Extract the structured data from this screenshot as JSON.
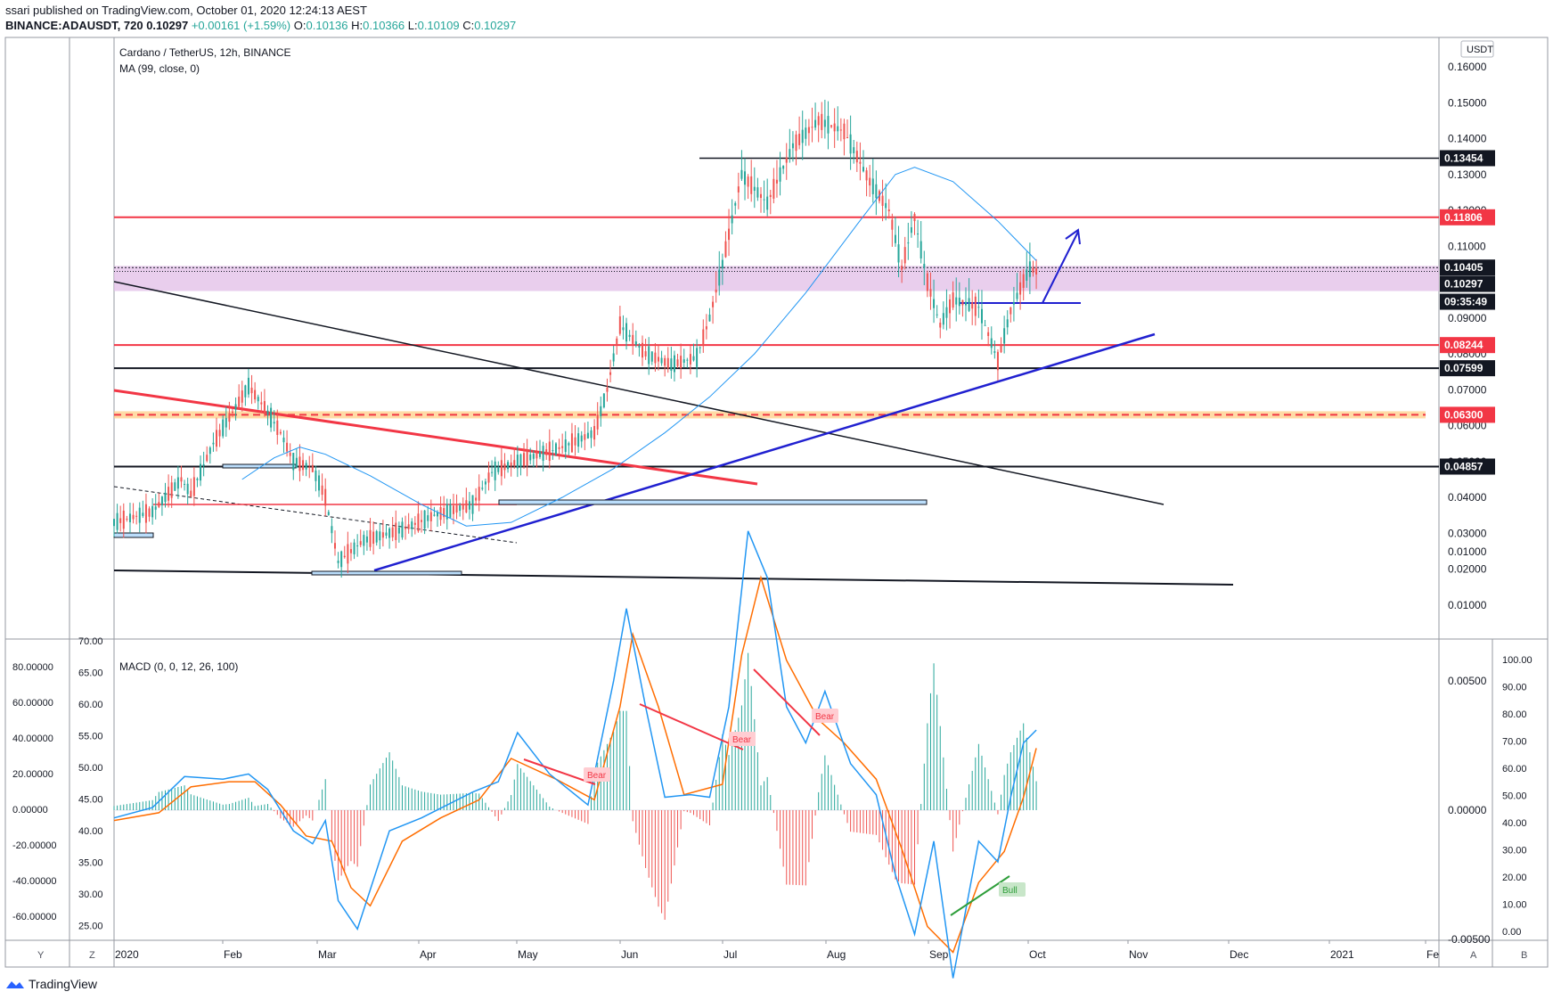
{
  "header": {
    "published": "ssari published on TradingView.com, October 01, 2020 12:24:13 AEST",
    "symbol": "BINANCE:ADAUSDT, 720",
    "last": "0.10297",
    "change": "+0.00161 (+1.59%)",
    "o_label": "O:",
    "o": "0.10136",
    "h_label": "H:",
    "h": "0.10366",
    "l_label": "L:",
    "l": "0.10109",
    "c_label": "C:",
    "c": "0.10297"
  },
  "legend": {
    "title": "Cardano / TetherUS, 12h, BINANCE",
    "ma": "MA (99, close, 0)",
    "macd": "MACD (0, 0, 12, 26, 100)"
  },
  "axis_corner": {
    "left": "Y",
    "z": "Z",
    "a": "A",
    "b": "B",
    "currency": "USDT"
  },
  "footer": {
    "brand": "TradingView"
  },
  "colors": {
    "up": "#26a69a",
    "down": "#ef5350",
    "ma": "#2196f3",
    "red_line": "#f23645",
    "blue_line": "#2020d0",
    "zone": "#e1bee7",
    "orange_zone": "#ffcc80",
    "macd": "#2196f3",
    "signal": "#ff6d00",
    "bear": "#f23645",
    "bull": "#2e9e3a"
  },
  "chart_data": [
    {
      "type": "candlestick",
      "title": "Cardano / TetherUS, 12h, BINANCE",
      "x_ticks": [
        "2020",
        "Feb",
        "Mar",
        "Apr",
        "May",
        "Jun",
        "Jul",
        "Aug",
        "Sep",
        "Oct",
        "Nov",
        "Dec",
        "2021",
        "Fe"
      ],
      "y_ticks": [
        "0.16000",
        "0.15000",
        "0.14000",
        "0.13000",
        "0.12000",
        "0.11000",
        "0.10000",
        "0.09000",
        "0.08000",
        "0.07000",
        "0.06000",
        "0.05000",
        "0.04000",
        "0.03000",
        "0.02000",
        "0.01000"
      ],
      "ylim": [
        0.0,
        0.17
      ],
      "price_path": [
        {
          "t": 0,
          "p": 0.033
        },
        {
          "t": 12,
          "p": 0.036
        },
        {
          "t": 21,
          "p": 0.045
        },
        {
          "t": 24,
          "p": 0.041
        },
        {
          "t": 31,
          "p": 0.055
        },
        {
          "t": 42,
          "p": 0.071
        },
        {
          "t": 47,
          "p": 0.065
        },
        {
          "t": 52,
          "p": 0.058
        },
        {
          "t": 56,
          "p": 0.05
        },
        {
          "t": 62,
          "p": 0.048
        },
        {
          "t": 66,
          "p": 0.04
        },
        {
          "t": 70,
          "p": 0.022
        },
        {
          "t": 78,
          "p": 0.028
        },
        {
          "t": 90,
          "p": 0.031
        },
        {
          "t": 100,
          "p": 0.035
        },
        {
          "t": 112,
          "p": 0.038
        },
        {
          "t": 118,
          "p": 0.047
        },
        {
          "t": 126,
          "p": 0.05
        },
        {
          "t": 140,
          "p": 0.054
        },
        {
          "t": 150,
          "p": 0.058
        },
        {
          "t": 154,
          "p": 0.07
        },
        {
          "t": 158,
          "p": 0.088
        },
        {
          "t": 166,
          "p": 0.08
        },
        {
          "t": 174,
          "p": 0.077
        },
        {
          "t": 182,
          "p": 0.079
        },
        {
          "t": 186,
          "p": 0.09
        },
        {
          "t": 190,
          "p": 0.105
        },
        {
          "t": 196,
          "p": 0.13
        },
        {
          "t": 204,
          "p": 0.122
        },
        {
          "t": 212,
          "p": 0.138
        },
        {
          "t": 220,
          "p": 0.145
        },
        {
          "t": 228,
          "p": 0.142
        },
        {
          "t": 236,
          "p": 0.128
        },
        {
          "t": 242,
          "p": 0.12
        },
        {
          "t": 246,
          "p": 0.104
        },
        {
          "t": 250,
          "p": 0.118
        },
        {
          "t": 254,
          "p": 0.1
        },
        {
          "t": 258,
          "p": 0.088
        },
        {
          "t": 262,
          "p": 0.095
        },
        {
          "t": 270,
          "p": 0.093
        },
        {
          "t": 276,
          "p": 0.078
        },
        {
          "t": 280,
          "p": 0.092
        },
        {
          "t": 284,
          "p": 0.1003
        },
        {
          "t": 286,
          "p": 0.1036
        },
        {
          "t": 288,
          "p": 0.10297
        }
      ],
      "ma99_path": [
        {
          "t": 40,
          "p": 0.045
        },
        {
          "t": 50,
          "p": 0.051
        },
        {
          "t": 58,
          "p": 0.054
        },
        {
          "t": 66,
          "p": 0.052
        },
        {
          "t": 80,
          "p": 0.046
        },
        {
          "t": 96,
          "p": 0.038
        },
        {
          "t": 110,
          "p": 0.032
        },
        {
          "t": 124,
          "p": 0.033
        },
        {
          "t": 140,
          "p": 0.04
        },
        {
          "t": 156,
          "p": 0.048
        },
        {
          "t": 172,
          "p": 0.058
        },
        {
          "t": 186,
          "p": 0.068
        },
        {
          "t": 200,
          "p": 0.08
        },
        {
          "t": 216,
          "p": 0.097
        },
        {
          "t": 232,
          "p": 0.116
        },
        {
          "t": 244,
          "p": 0.13
        },
        {
          "t": 250,
          "p": 0.132
        },
        {
          "t": 262,
          "p": 0.128
        },
        {
          "t": 276,
          "p": 0.117
        },
        {
          "t": 288,
          "p": 0.106
        }
      ],
      "price_labels": [
        {
          "value": "0.13454",
          "bg": "#131722",
          "fg": "#ffffff"
        },
        {
          "value": "0.11806",
          "bg": "#f23645",
          "fg": "#ffffff"
        },
        {
          "value": "0.10405",
          "bg": "#131722",
          "fg": "#ffffff"
        },
        {
          "value": "0.10297",
          "bg": "#131722",
          "fg": "#ffffff"
        },
        {
          "value": "09:35:49",
          "bg": "#131722",
          "fg": "#ffffff"
        },
        {
          "value": "0.08244",
          "bg": "#f23645",
          "fg": "#ffffff"
        },
        {
          "value": "0.07599",
          "bg": "#131722",
          "fg": "#ffffff"
        },
        {
          "value": "0.06300",
          "bg": "#f23645",
          "fg": "#ffffff"
        },
        {
          "value": "0.04857",
          "bg": "#131722",
          "fg": "#ffffff"
        }
      ]
    },
    {
      "type": "macd",
      "title": "MACD (0, 0, 12, 26, 100)",
      "right_ticks": [
        "0.01000",
        "0.00500",
        "0.00000",
        "-0.00500"
      ],
      "ylim": [
        -0.0085,
        0.0125
      ],
      "left_ticks_a": [
        "80.00000",
        "60.00000",
        "40.00000",
        "20.00000",
        "0.00000",
        "-20.00000",
        "-40.00000",
        "-60.00000"
      ],
      "left_ticks_b": [
        "70.00",
        "65.00",
        "60.00",
        "55.00",
        "50.00",
        "45.00",
        "40.00",
        "35.00",
        "30.00",
        "25.00"
      ],
      "far_right_ticks": [
        "100.00",
        "90.00",
        "80.00",
        "70.00",
        "60.00",
        "50.00",
        "40.00",
        "30.00",
        "20.00",
        "10.00",
        "0.00"
      ],
      "macd_path": [
        {
          "t": 0,
          "p": -0.0003
        },
        {
          "t": 12,
          "p": 0.0001
        },
        {
          "t": 22,
          "p": 0.0013
        },
        {
          "t": 34,
          "p": 0.0012
        },
        {
          "t": 42,
          "p": 0.0014
        },
        {
          "t": 48,
          "p": 0.0008
        },
        {
          "t": 56,
          "p": -0.0008
        },
        {
          "t": 62,
          "p": -0.0013
        },
        {
          "t": 66,
          "p": -0.0004
        },
        {
          "t": 70,
          "p": -0.0035
        },
        {
          "t": 76,
          "p": -0.0046
        },
        {
          "t": 86,
          "p": -0.0008
        },
        {
          "t": 96,
          "p": -0.0003
        },
        {
          "t": 104,
          "p": 0.0002
        },
        {
          "t": 112,
          "p": 0.0007
        },
        {
          "t": 120,
          "p": 0.0011
        },
        {
          "t": 126,
          "p": 0.003
        },
        {
          "t": 136,
          "p": 0.0014
        },
        {
          "t": 148,
          "p": 0.0002
        },
        {
          "t": 156,
          "p": 0.005
        },
        {
          "t": 160,
          "p": 0.0078
        },
        {
          "t": 166,
          "p": 0.004
        },
        {
          "t": 172,
          "p": 0.0005
        },
        {
          "t": 180,
          "p": 0.0006
        },
        {
          "t": 186,
          "p": 0.0005
        },
        {
          "t": 192,
          "p": 0.004
        },
        {
          "t": 198,
          "p": 0.0108
        },
        {
          "t": 204,
          "p": 0.009
        },
        {
          "t": 210,
          "p": 0.004
        },
        {
          "t": 216,
          "p": 0.0026
        },
        {
          "t": 222,
          "p": 0.0046
        },
        {
          "t": 230,
          "p": 0.0018
        },
        {
          "t": 238,
          "p": 0.0006
        },
        {
          "t": 244,
          "p": -0.0025
        },
        {
          "t": 250,
          "p": -0.0048
        },
        {
          "t": 256,
          "p": -0.0012
        },
        {
          "t": 262,
          "p": -0.0065
        },
        {
          "t": 270,
          "p": -0.0012
        },
        {
          "t": 276,
          "p": -0.002
        },
        {
          "t": 280,
          "p": 0.0005
        },
        {
          "t": 284,
          "p": 0.0026
        },
        {
          "t": 288,
          "p": 0.0031
        }
      ],
      "signal_path": [
        {
          "t": 0,
          "p": -0.0004
        },
        {
          "t": 14,
          "p": -0.0001
        },
        {
          "t": 24,
          "p": 0.0009
        },
        {
          "t": 36,
          "p": 0.0011
        },
        {
          "t": 44,
          "p": 0.0011
        },
        {
          "t": 52,
          "p": 0.0002
        },
        {
          "t": 60,
          "p": -0.001
        },
        {
          "t": 68,
          "p": -0.0012
        },
        {
          "t": 74,
          "p": -0.003
        },
        {
          "t": 80,
          "p": -0.0037
        },
        {
          "t": 90,
          "p": -0.0012
        },
        {
          "t": 102,
          "p": -0.0003
        },
        {
          "t": 114,
          "p": 0.0004
        },
        {
          "t": 124,
          "p": 0.002
        },
        {
          "t": 138,
          "p": 0.0012
        },
        {
          "t": 150,
          "p": 0.0004
        },
        {
          "t": 158,
          "p": 0.004
        },
        {
          "t": 162,
          "p": 0.0068
        },
        {
          "t": 170,
          "p": 0.004
        },
        {
          "t": 178,
          "p": 0.0006
        },
        {
          "t": 190,
          "p": 0.001
        },
        {
          "t": 196,
          "p": 0.006
        },
        {
          "t": 202,
          "p": 0.009
        },
        {
          "t": 210,
          "p": 0.0058
        },
        {
          "t": 220,
          "p": 0.0035
        },
        {
          "t": 228,
          "p": 0.0026
        },
        {
          "t": 238,
          "p": 0.0012
        },
        {
          "t": 246,
          "p": -0.0015
        },
        {
          "t": 254,
          "p": -0.0045
        },
        {
          "t": 262,
          "p": -0.0055
        },
        {
          "t": 270,
          "p": -0.0028
        },
        {
          "t": 278,
          "p": -0.0016
        },
        {
          "t": 284,
          "p": 0.0005
        },
        {
          "t": 288,
          "p": 0.0024
        }
      ],
      "annotations": [
        {
          "text": "Bear",
          "kind": "bear"
        },
        {
          "text": "Bear",
          "kind": "bear"
        },
        {
          "text": "Bear",
          "kind": "bear"
        },
        {
          "text": "Bull",
          "kind": "bull"
        }
      ]
    }
  ]
}
